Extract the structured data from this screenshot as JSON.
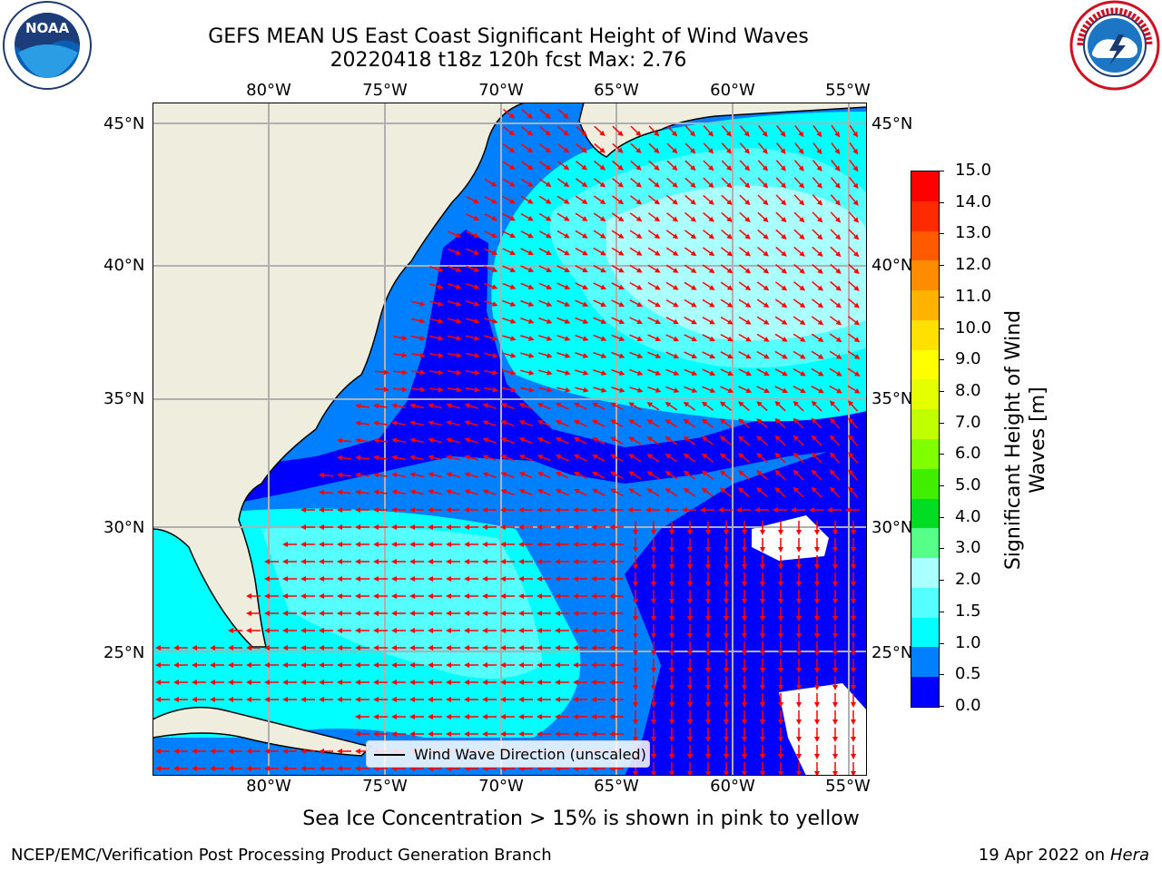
{
  "title": {
    "line1": "GEFS MEAN US East Coast Significant Height of Wind Waves",
    "line2": "20220418 t18z 120h fcst   Max: 2.76"
  },
  "logos": {
    "left": "NOAA",
    "right": "NATIONAL WEATHER SERVICE"
  },
  "map": {
    "lon_ticks": [
      "80°W",
      "75°W",
      "70°W",
      "65°W",
      "60°W",
      "55°W"
    ],
    "lat_ticks": [
      "45°N",
      "40°N",
      "35°N",
      "30°N",
      "25°N"
    ],
    "legend": "Wind Wave Direction (unscaled)",
    "arrow_color": "#ff0000",
    "land_color": "#efedde",
    "extent": {
      "lon": [
        -85,
        -54.3
      ],
      "lat": [
        20.5,
        46
      ]
    }
  },
  "colorbar": {
    "title": "Significant Height of Wind Waves [m]",
    "ticks": [
      "15.0",
      "14.0",
      "13.0",
      "12.0",
      "11.0",
      "10.0",
      "9.0",
      "8.0",
      "7.0",
      "6.0",
      "5.0",
      "4.0",
      "3.0",
      "2.0",
      "1.5",
      "1.0",
      "0.5",
      "0.0"
    ],
    "colors": [
      "#ff0000",
      "#ff2b00",
      "#ff5a00",
      "#ff8c00",
      "#ffb300",
      "#ffe000",
      "#ffff00",
      "#e6ff00",
      "#bfff00",
      "#80ff00",
      "#40ee00",
      "#00dd22",
      "#55ff88",
      "#aaffff",
      "#55ffff",
      "#00ffff",
      "#0080ff",
      "#0000ff"
    ]
  },
  "ice_note": "Sea Ice Concentration > 15% is shown in pink to yellow",
  "footer": {
    "left": "NCEP/EMC/Verification Post Processing Product Generation Branch",
    "date": "19 Apr 2022 on ",
    "host": "Hera"
  }
}
